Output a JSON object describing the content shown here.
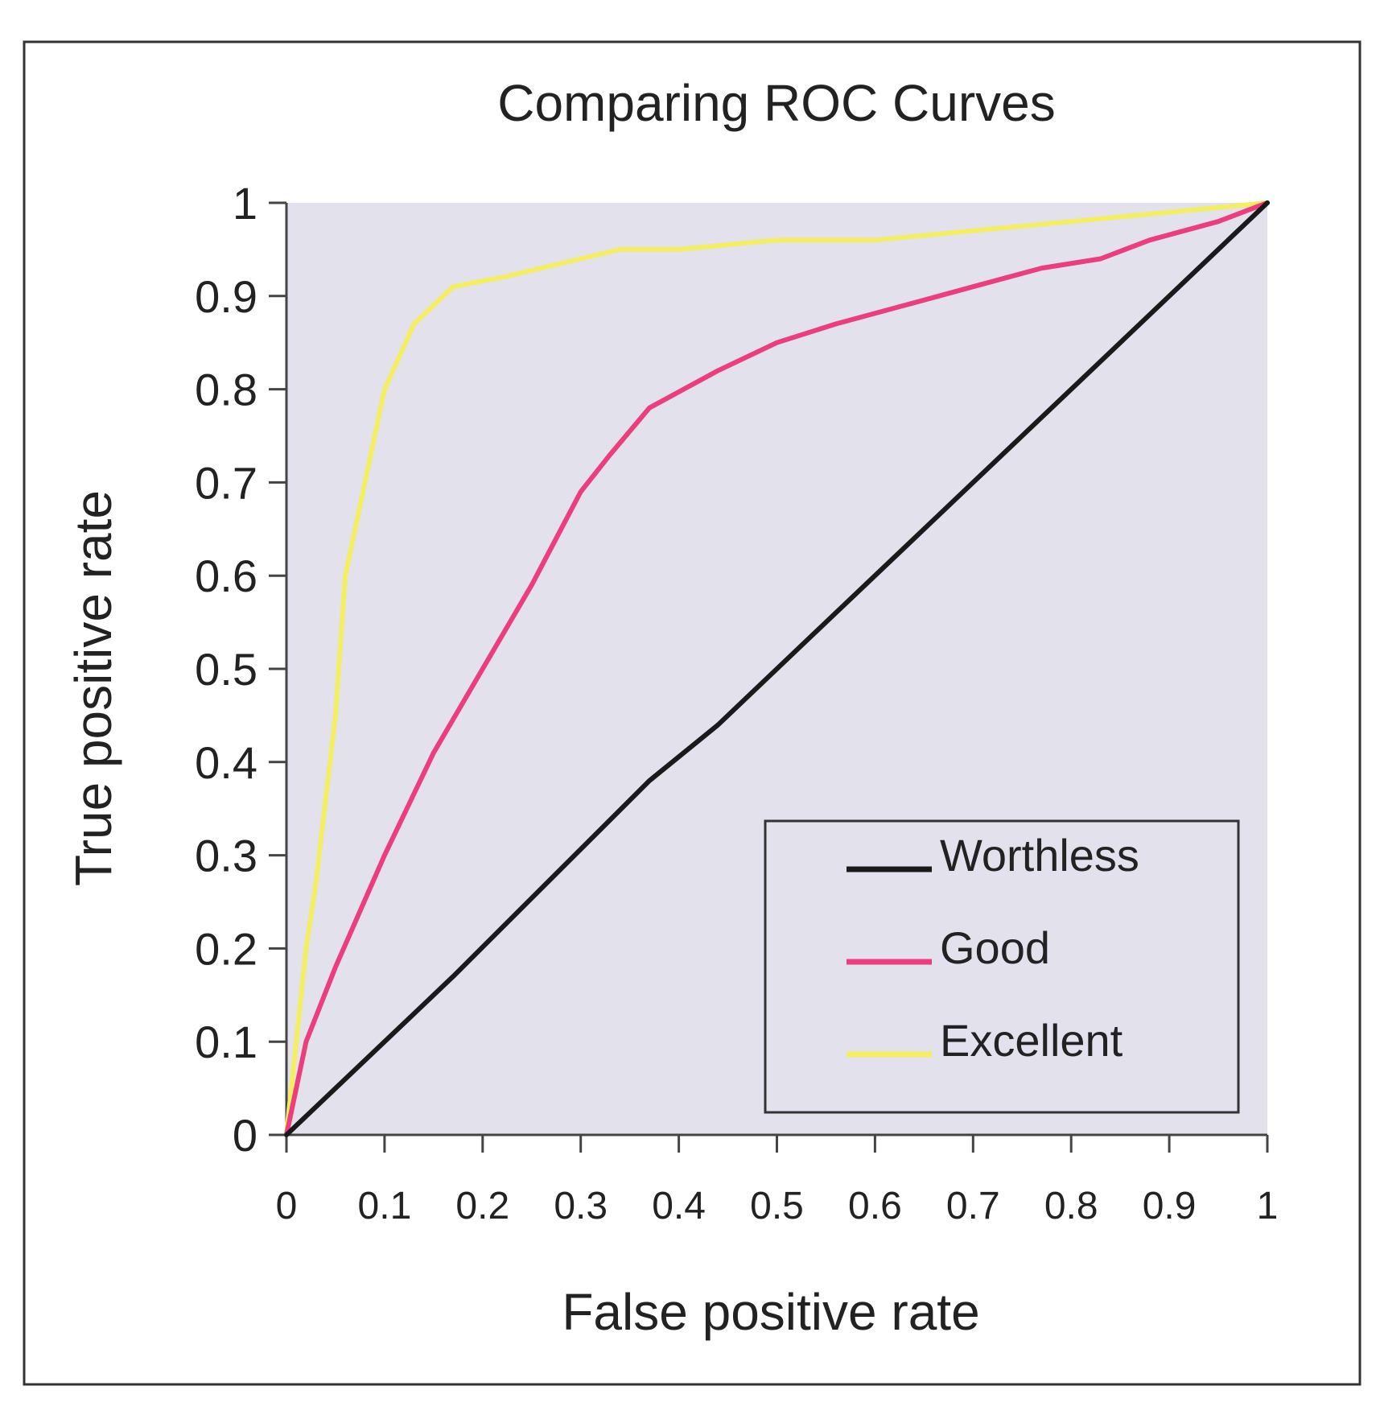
{
  "chart_data": {
    "type": "line",
    "title": "Comparing ROC Curves",
    "xlabel": "False positive rate",
    "ylabel": "True positive rate",
    "xlim": [
      0,
      1
    ],
    "ylim": [
      0,
      1
    ],
    "x_ticks": [
      "0",
      "0.1",
      "0.2",
      "0.3",
      "0.4",
      "0.5",
      "0.6",
      "0.7",
      "0.8",
      "0.9",
      "1"
    ],
    "y_ticks": [
      "0",
      "0.1",
      "0.2",
      "0.3",
      "0.4",
      "0.5",
      "0.6",
      "0.7",
      "0.8",
      "0.9",
      "1"
    ],
    "legend_position": "bottom-right",
    "plot_background": "#e2e1ec",
    "series": [
      {
        "name": "Worthless",
        "color": "#1a1a1a",
        "x": [
          0,
          0.1,
          0.17,
          0.37,
          0.44,
          0.57,
          0.68,
          0.74,
          0.84,
          0.9,
          0.95,
          1
        ],
        "y": [
          0,
          0.1,
          0.17,
          0.38,
          0.44,
          0.57,
          0.68,
          0.74,
          0.84,
          0.9,
          0.95,
          1
        ]
      },
      {
        "name": "Good",
        "color": "#ec3d7c",
        "x": [
          0,
          0.02,
          0.05,
          0.1,
          0.15,
          0.2,
          0.25,
          0.28,
          0.3,
          0.33,
          0.37,
          0.44,
          0.5,
          0.56,
          0.63,
          0.7,
          0.77,
          0.83,
          0.88,
          0.95,
          1
        ],
        "y": [
          0,
          0.1,
          0.18,
          0.3,
          0.41,
          0.5,
          0.59,
          0.65,
          0.69,
          0.73,
          0.78,
          0.82,
          0.85,
          0.87,
          0.89,
          0.91,
          0.93,
          0.94,
          0.96,
          0.98,
          1
        ]
      },
      {
        "name": "Excellent",
        "color": "#f4ee62",
        "x": [
          0,
          0.02,
          0.03,
          0.05,
          0.06,
          0.08,
          0.1,
          0.13,
          0.17,
          0.22,
          0.3,
          0.34,
          0.4,
          0.5,
          0.6,
          0.7,
          0.8,
          0.9,
          1
        ],
        "y": [
          0,
          0.2,
          0.27,
          0.45,
          0.6,
          0.7,
          0.8,
          0.87,
          0.91,
          0.92,
          0.94,
          0.95,
          0.95,
          0.96,
          0.96,
          0.97,
          0.98,
          0.99,
          1
        ]
      }
    ]
  }
}
